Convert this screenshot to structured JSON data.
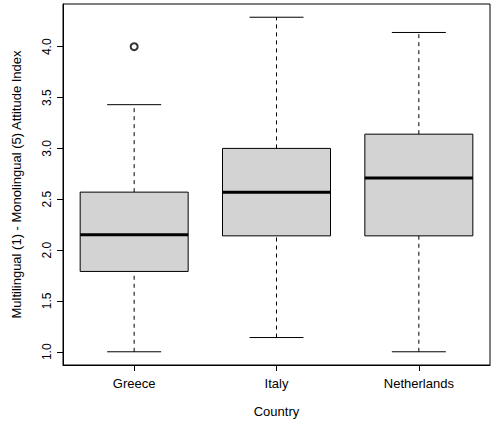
{
  "chart_data": {
    "type": "boxplot",
    "x_label": "Country",
    "y_label": "Multilingual (1) - Monolingual (5) Attitude Index",
    "categories": [
      "Greece",
      "Italy",
      "Netherlands"
    ],
    "boxes": [
      {
        "min": 1.0,
        "q1": 1.79,
        "median": 2.15,
        "q3": 2.57,
        "max": 3.43,
        "outliers": [
          4.0
        ]
      },
      {
        "min": 1.14,
        "q1": 2.14,
        "median": 2.57,
        "q3": 3.0,
        "max": 4.29,
        "outliers": []
      },
      {
        "min": 1.0,
        "q1": 2.14,
        "median": 2.71,
        "q3": 3.14,
        "max": 4.14,
        "outliers": []
      }
    ],
    "color": "#d3d3d3",
    "marker": "open_circle",
    "ylim": [
      0.87,
      4.42
    ],
    "yticks": [
      {
        "value": 1,
        "label": "1.0"
      },
      {
        "value": 1.5,
        "label": "1.5"
      },
      {
        "value": 2,
        "label": "2.0"
      },
      {
        "value": 2.5,
        "label": "2.5"
      },
      {
        "value": 3,
        "label": "3.0"
      },
      {
        "value": 3.5,
        "label": "3.5"
      },
      {
        "value": 4,
        "label": "4.0"
      }
    ],
    "grid": false
  }
}
